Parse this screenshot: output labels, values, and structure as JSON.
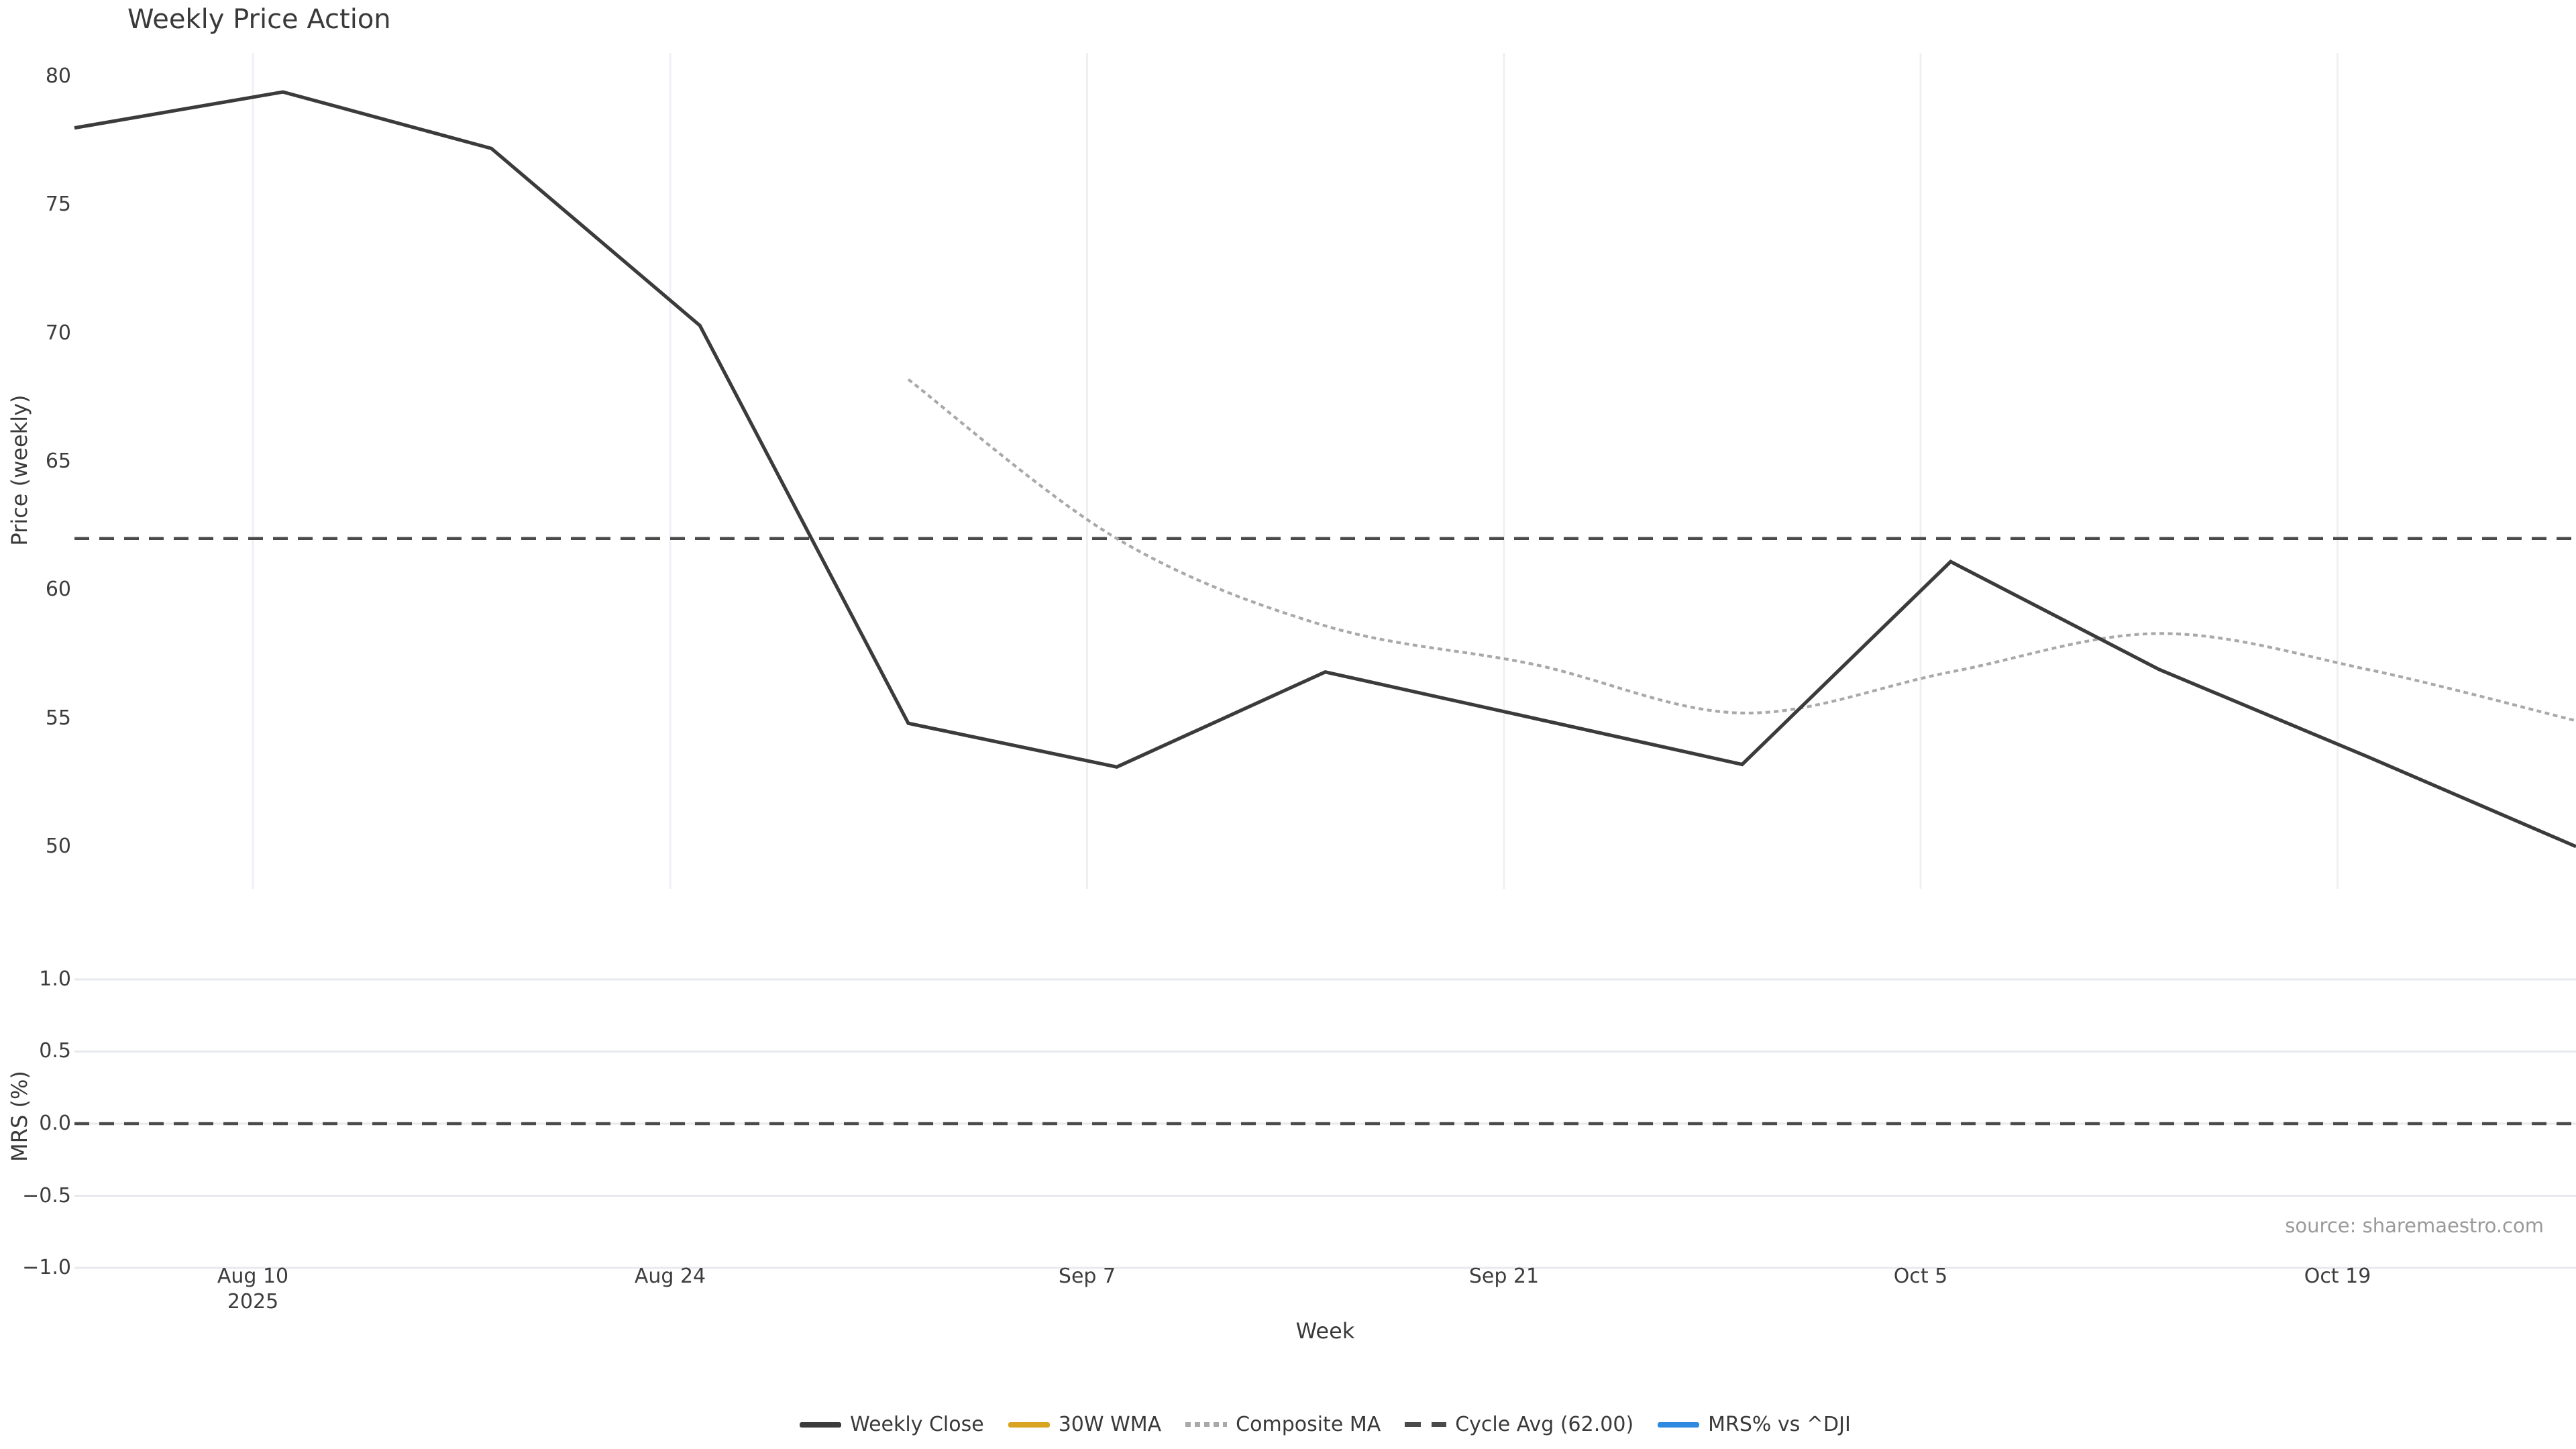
{
  "title": "Weekly Price Action",
  "source_note": "source: sharemaestro.com",
  "price_panel": {
    "ylabel": "Price (weekly)",
    "yticks": [
      "80",
      "75",
      "70",
      "65",
      "60",
      "55",
      "50"
    ],
    "ytick_values": [
      80,
      75,
      70,
      65,
      60,
      55,
      50
    ]
  },
  "mrs_panel": {
    "ylabel": "MRS (%)",
    "yticks": [
      "1.0",
      "0.5",
      "0.0",
      "−0.5",
      "−1.0"
    ],
    "ytick_values": [
      1.0,
      0.5,
      0.0,
      -0.5,
      -1.0
    ]
  },
  "xaxis": {
    "label": "Week",
    "ticks": [
      {
        "label": "Aug 10",
        "sublabel": "2025"
      },
      {
        "label": "Aug 24",
        "sublabel": ""
      },
      {
        "label": "Sep 7",
        "sublabel": ""
      },
      {
        "label": "Sep 21",
        "sublabel": ""
      },
      {
        "label": "Oct 5",
        "sublabel": ""
      },
      {
        "label": "Oct 19",
        "sublabel": ""
      }
    ]
  },
  "legend": [
    {
      "label": "Weekly Close",
      "color": "#3b3b3b",
      "style": "solid"
    },
    {
      "label": "30W WMA",
      "color": "#d9a421",
      "style": "solid"
    },
    {
      "label": "Composite MA",
      "color": "#a9a9a9",
      "style": "dotted"
    },
    {
      "label": "Cycle Avg (62.00)",
      "color": "#4a4a4a",
      "style": "dashed"
    },
    {
      "label": "MRS% vs ^DJI",
      "color": "#2f89e0",
      "style": "solid"
    }
  ],
  "colors": {
    "weekly_close": "#3b3b3b",
    "wma_30w": "#d9a421",
    "composite_ma": "#a9a9a9",
    "cycle_avg": "#4a4a4a",
    "mrs": "#2f89e0",
    "grid_vertical": "#eef1f4",
    "grid_horizontal": "#e7e9ed",
    "text": "#3a3a3a",
    "source_text": "#9a9a9a"
  },
  "chart_data": [
    {
      "type": "line",
      "panel": "price",
      "title": "Weekly Price Action",
      "xlabel": "Week",
      "ylabel": "Price (weekly)",
      "x": [
        "Aug 4",
        "Aug 11",
        "Aug 18",
        "Aug 25",
        "Sep 1",
        "Sep 8",
        "Sep 15",
        "Sep 22",
        "Sep 29",
        "Oct 6",
        "Oct 13",
        "Oct 20",
        "Oct 27"
      ],
      "x_year": "2025",
      "xtick_labels": [
        "Aug 10",
        "Aug 24",
        "Sep 7",
        "Sep 21",
        "Oct 5",
        "Oct 19"
      ],
      "ylim": [
        48.35,
        80.92
      ],
      "grid": "vertical-only",
      "legend_position": "bottom-center",
      "series": [
        {
          "name": "Weekly Close",
          "style": "solid",
          "color": "#3b3b3b",
          "values": [
            78.0,
            79.4,
            77.2,
            70.3,
            54.8,
            53.1,
            56.8,
            55.0,
            53.2,
            61.1,
            56.9,
            53.5,
            50.0
          ]
        },
        {
          "name": "30W WMA",
          "style": "solid",
          "color": "#d9a421",
          "visible": false,
          "values": []
        },
        {
          "name": "Composite MA",
          "style": "dotted",
          "color": "#a9a9a9",
          "values": [
            null,
            null,
            null,
            null,
            68.2,
            62.0,
            58.6,
            57.1,
            55.2,
            56.8,
            58.3,
            56.9,
            54.9
          ]
        },
        {
          "name": "Cycle Avg (62.00)",
          "style": "dashed",
          "color": "#4a4a4a",
          "const_value": 62.0
        }
      ]
    },
    {
      "type": "line",
      "panel": "mrs",
      "ylabel": "MRS (%)",
      "ylim": [
        -1.023,
        1.116
      ],
      "grid": "horizontal-only",
      "series": [
        {
          "name": "MRS% vs ^DJI",
          "style": "solid",
          "color": "#2f89e0",
          "visible": false,
          "values": []
        },
        {
          "name": "Zero line",
          "style": "dashed",
          "color": "#4a4a4a",
          "const_value": 0.0
        }
      ]
    }
  ]
}
